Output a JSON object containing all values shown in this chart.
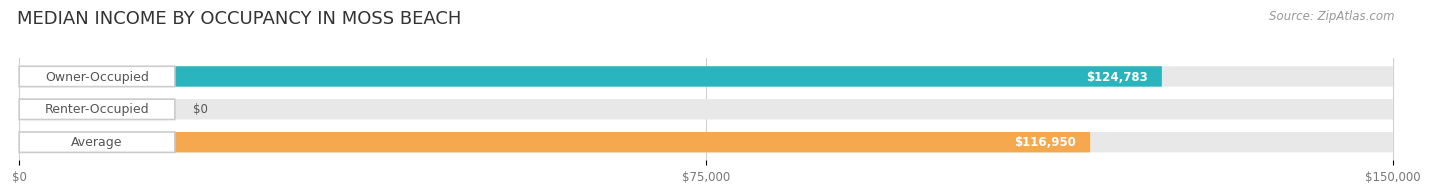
{
  "title": "MEDIAN INCOME BY OCCUPANCY IN MOSS BEACH",
  "source": "Source: ZipAtlas.com",
  "categories": [
    "Owner-Occupied",
    "Renter-Occupied",
    "Average"
  ],
  "values": [
    124783,
    0,
    116950
  ],
  "bar_colors": [
    "#29b4be",
    "#c3a8d1",
    "#f5a84e"
  ],
  "value_labels": [
    "$124,783",
    "$0",
    "$116,950"
  ],
  "xlim": [
    0,
    150000
  ],
  "xticks": [
    0,
    75000,
    150000
  ],
  "xtick_labels": [
    "$0",
    "$75,000",
    "$150,000"
  ],
  "title_fontsize": 13,
  "source_fontsize": 8.5,
  "label_fontsize": 9,
  "value_fontsize": 8.5,
  "bar_height": 0.62,
  "background_color": "#ffffff",
  "bar_bg_color": "#e8e8e8",
  "label_bg_color": "#ffffff",
  "grid_color": "#d0d0d0",
  "text_color": "#555555",
  "value_color": "#555555"
}
